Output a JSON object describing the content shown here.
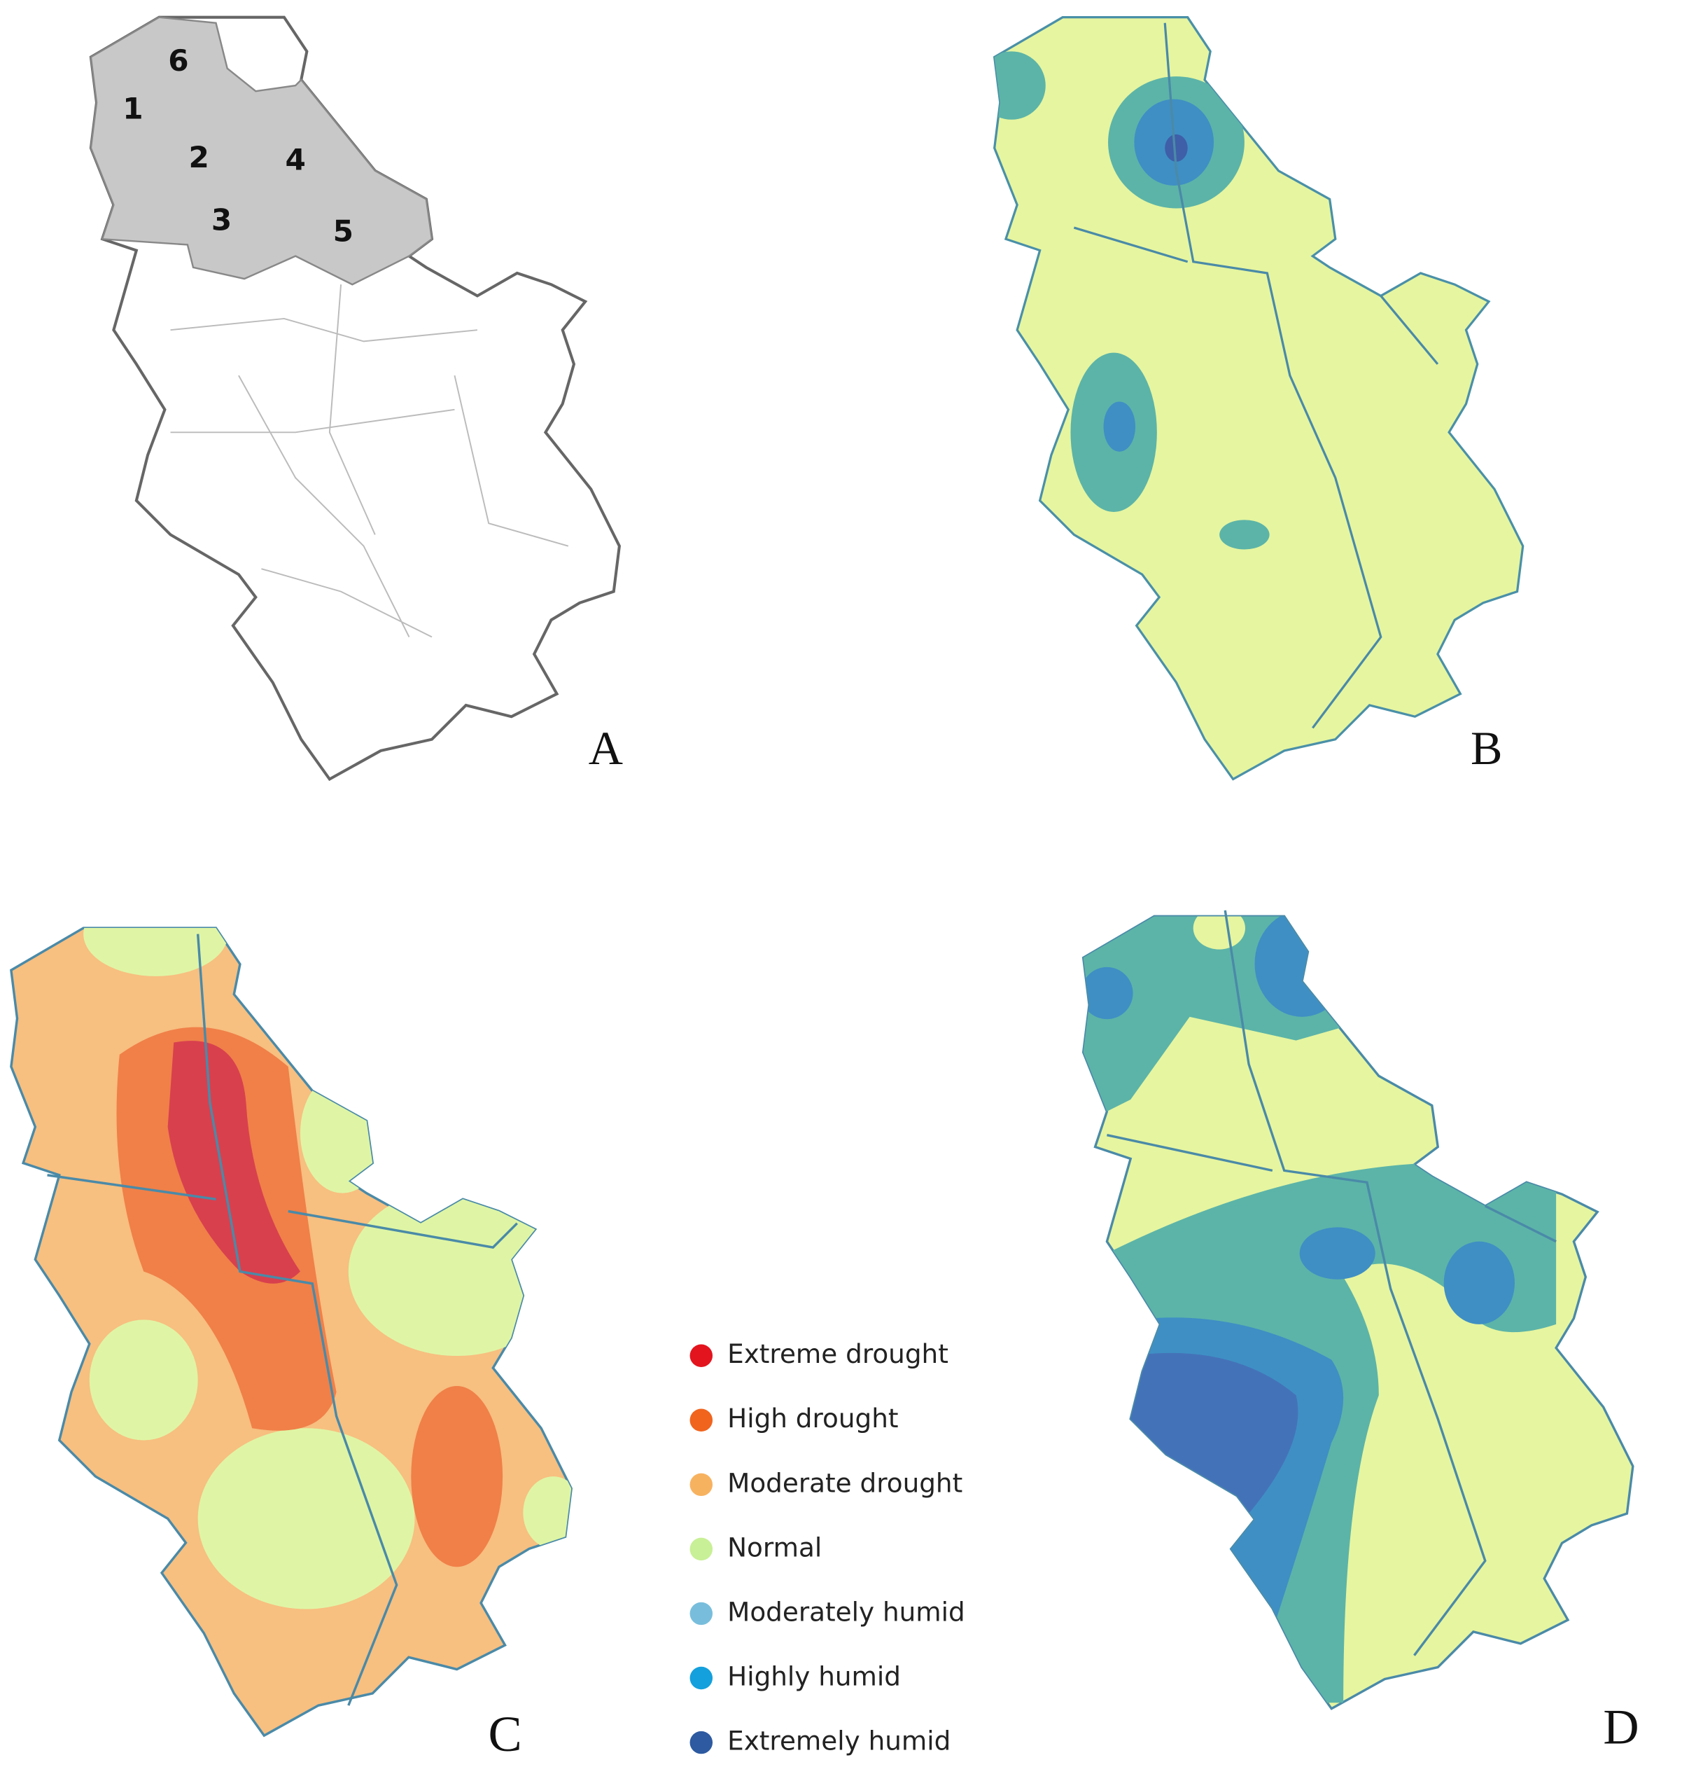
{
  "panels": [
    {
      "label": "A"
    },
    {
      "label": "B"
    },
    {
      "label": "C"
    },
    {
      "label": "D"
    }
  ],
  "regions": [
    "1",
    "2",
    "3",
    "4",
    "5",
    "6"
  ],
  "legend": [
    {
      "label": "Extreme drought",
      "color": "#e3141e"
    },
    {
      "label": "High drought",
      "color": "#f0641e"
    },
    {
      "label": "Moderate drought",
      "color": "#f7b260"
    },
    {
      "label": "Normal",
      "color": "#c8f096"
    },
    {
      "label": "Moderately humid",
      "color": "#78bedc"
    },
    {
      "label": "Highly humid",
      "color": "#14a0dc"
    },
    {
      "label": "Extremely humid",
      "color": "#2d5aa0"
    }
  ]
}
